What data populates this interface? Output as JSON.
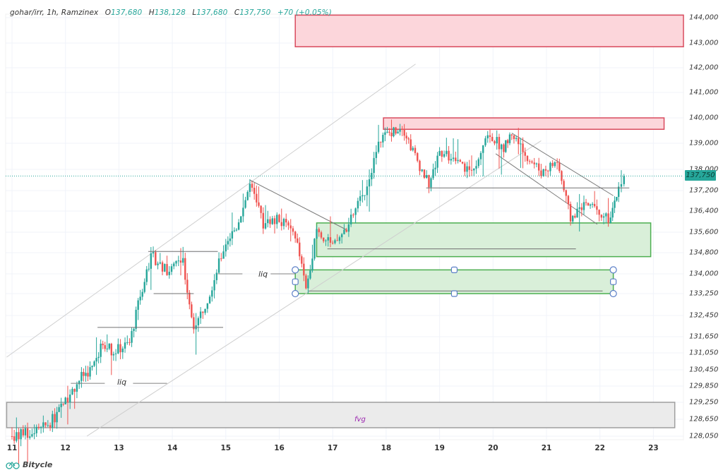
{
  "header": {
    "symbol": "gohar/irr, 1h, Ramzinex",
    "open_key": "O",
    "open": "137,680",
    "high_key": "H",
    "high": "138,128",
    "low_key": "L",
    "low": "137,680",
    "close_key": "C",
    "close": "137,750",
    "change": "+70 (+0.05%)"
  },
  "brand": {
    "name": "Bitycle",
    "icon": "bike-logo-icon"
  },
  "current_price_tag": "137,750",
  "colors": {
    "up": "#26a69a",
    "down": "#ef5350",
    "grid": "#f0f3fa",
    "supply_fill": "#fcd6db",
    "supply_border": "#d94b5e",
    "demand_fill": "#d9efd9",
    "demand_border": "#4caf50",
    "fvg_fill": "#ebebeb",
    "fvg_border": "#9e9e9e",
    "fvg_text": "#9c27b0"
  },
  "annotations": {
    "liq_1": "liq",
    "liq_2": "liq",
    "fvg": "fvg"
  },
  "chart_data": {
    "type": "candlestick",
    "title": "gohar/irr, 1h, Ramzinex",
    "xlabel": "",
    "ylabel": "",
    "x_ticks": [
      "11",
      "12",
      "13",
      "14",
      "15",
      "16",
      "17",
      "18",
      "19",
      "20",
      "21",
      "22",
      "23"
    ],
    "y_ticks": [
      "144,000",
      "143,000",
      "142,000",
      "141,000",
      "140,000",
      "139,000",
      "138,000",
      "137,200",
      "136,400",
      "135,600",
      "134,800",
      "134,000",
      "133,250",
      "132,450",
      "131,650",
      "131,050",
      "130,450",
      "129,850",
      "129,250",
      "128,650",
      "128,050"
    ],
    "last": {
      "open": 137680,
      "high": 138128,
      "low": 137680,
      "close": 137750,
      "change": 70,
      "change_pct": 0.05
    },
    "price_path_waypoints": [
      {
        "day": 11.0,
        "price": 128050
      },
      {
        "day": 11.5,
        "price": 128200
      },
      {
        "day": 11.8,
        "price": 128700
      },
      {
        "day": 12.0,
        "price": 129300
      },
      {
        "day": 12.3,
        "price": 130200
      },
      {
        "day": 12.5,
        "price": 130500
      },
      {
        "day": 12.7,
        "price": 131400
      },
      {
        "day": 12.9,
        "price": 131100
      },
      {
        "day": 13.2,
        "price": 131400
      },
      {
        "day": 13.4,
        "price": 133200
      },
      {
        "day": 13.6,
        "price": 134700
      },
      {
        "day": 13.9,
        "price": 134100
      },
      {
        "day": 14.2,
        "price": 134500
      },
      {
        "day": 14.4,
        "price": 131900
      },
      {
        "day": 14.7,
        "price": 133300
      },
      {
        "day": 15.0,
        "price": 135200
      },
      {
        "day": 15.2,
        "price": 135800
      },
      {
        "day": 15.45,
        "price": 137400
      },
      {
        "day": 15.7,
        "price": 135900
      },
      {
        "day": 16.0,
        "price": 136100
      },
      {
        "day": 16.3,
        "price": 135500
      },
      {
        "day": 16.5,
        "price": 133400
      },
      {
        "day": 16.7,
        "price": 135700
      },
      {
        "day": 17.0,
        "price": 135000
      },
      {
        "day": 17.3,
        "price": 135900
      },
      {
        "day": 17.6,
        "price": 137200
      },
      {
        "day": 17.9,
        "price": 139200
      },
      {
        "day": 18.3,
        "price": 139700
      },
      {
        "day": 18.5,
        "price": 138700
      },
      {
        "day": 18.8,
        "price": 137400
      },
      {
        "day": 19.0,
        "price": 138700
      },
      {
        "day": 19.3,
        "price": 138300
      },
      {
        "day": 19.6,
        "price": 137900
      },
      {
        "day": 19.9,
        "price": 139400
      },
      {
        "day": 20.2,
        "price": 138800
      },
      {
        "day": 20.35,
        "price": 139400
      },
      {
        "day": 20.6,
        "price": 138600
      },
      {
        "day": 20.9,
        "price": 137900
      },
      {
        "day": 21.2,
        "price": 138300
      },
      {
        "day": 21.45,
        "price": 136100
      },
      {
        "day": 21.7,
        "price": 136700
      },
      {
        "day": 21.9,
        "price": 136600
      },
      {
        "day": 22.2,
        "price": 136000
      },
      {
        "day": 22.35,
        "price": 137400
      },
      {
        "day": 22.45,
        "price": 137750
      }
    ],
    "zones": [
      {
        "type": "supply",
        "from_day": 16.3,
        "to_day": 24.0,
        "low": 142850,
        "high": 144100
      },
      {
        "type": "supply",
        "from_day": 17.95,
        "to_day": 23.2,
        "low": 139550,
        "high": 140000
      },
      {
        "type": "demand",
        "from_day": 16.7,
        "to_day": 22.95,
        "low": 134650,
        "high": 135950
      },
      {
        "type": "demand",
        "from_day": 16.3,
        "to_day": 22.25,
        "low": 133250,
        "high": 134150
      },
      {
        "type": "fvg",
        "from_day": 10.9,
        "to_day": 23.4,
        "low": 128350,
        "high": 129250
      }
    ],
    "horizontal_levels": [
      {
        "label": "liq",
        "from_day": 12.1,
        "to_day": 13.9,
        "price": 129950
      },
      {
        "label": "liq",
        "from_day": 14.85,
        "to_day": 16.3,
        "price": 134000
      },
      {
        "label": "",
        "from_day": 12.6,
        "to_day": 14.95,
        "price": 132000
      },
      {
        "label": "",
        "from_day": 13.55,
        "to_day": 14.85,
        "price": 134850
      },
      {
        "label": "",
        "from_day": 13.65,
        "to_day": 14.4,
        "price": 133250
      },
      {
        "label": "",
        "from_day": 16.9,
        "to_day": 21.55,
        "price": 134950
      },
      {
        "label": "",
        "from_day": 18.75,
        "to_day": 22.55,
        "price": 137300
      },
      {
        "label": "",
        "from_day": 16.55,
        "to_day": 22.05,
        "price": 133350
      }
    ],
    "trend_lines": [
      {
        "from": [
          10.9,
          130900
        ],
        "to": [
          18.55,
          142150
        ],
        "color": "#cfcfcf"
      },
      {
        "from": [
          12.4,
          128050
        ],
        "to": [
          20.9,
          139100
        ],
        "color": "#cfcfcf"
      },
      {
        "from": [
          15.45,
          137600
        ],
        "to": [
          17.25,
          135700
        ],
        "color": "#7a7a7a"
      },
      {
        "from": [
          20.35,
          139400
        ],
        "to": [
          22.25,
          137000
        ],
        "color": "#7a7a7a"
      },
      {
        "from": [
          20.05,
          138600
        ],
        "to": [
          21.95,
          135900
        ],
        "color": "#7a7a7a"
      }
    ],
    "current_price": 137750
  }
}
